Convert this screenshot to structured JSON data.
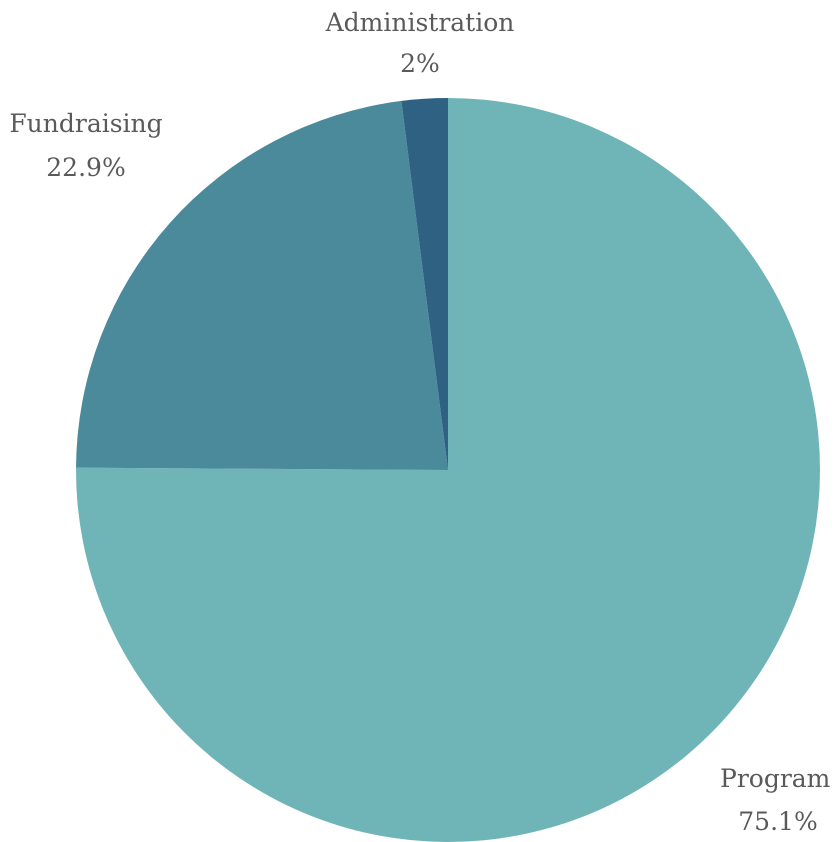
{
  "chart_data": {
    "type": "pie",
    "title": "",
    "slices": [
      {
        "label": "Program",
        "value": 75.1,
        "value_label": "75.1%",
        "color": "#6fb5b8"
      },
      {
        "label": "Fundraising",
        "value": 22.9,
        "value_label": "22.9%",
        "color": "#4a8a9b"
      },
      {
        "label": "Administration",
        "value": 2,
        "value_label": "2%",
        "color": "#2f6282"
      }
    ],
    "start_angle_deg": 0,
    "direction": "clockwise",
    "legend": "none"
  }
}
